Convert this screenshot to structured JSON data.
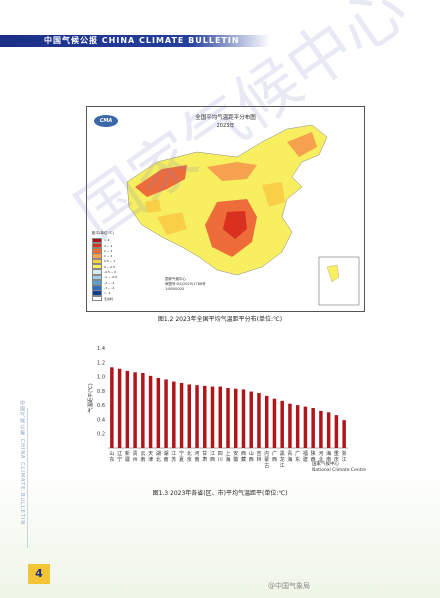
{
  "header": {
    "text": "中国气候公报  CHINA CLIMATE BULLETIN"
  },
  "sidebar": {
    "text": "中国气候公报 CHINA CLIMATE BULLETIN"
  },
  "page_number": "4",
  "map": {
    "title": "全国平均气温距平分布图",
    "year": "2023年",
    "logo_text": "CMA",
    "legend_title": "距平(单位:℃)",
    "legend": [
      {
        "label": "> 4",
        "color": "#a8141a"
      },
      {
        "label": "3 ~ 4",
        "color": "#d9301f"
      },
      {
        "label": "2 ~ 3",
        "color": "#ee6b3a"
      },
      {
        "label": "1 ~ 2",
        "color": "#f6a14e"
      },
      {
        "label": "0.5 ~ 1",
        "color": "#f9cf47"
      },
      {
        "label": "0 ~ 0.5",
        "color": "#f7ee60"
      },
      {
        "label": "-0.5 ~ 0",
        "color": "#d5ecf0"
      },
      {
        "label": "-1 ~ -0.5",
        "color": "#9fd0ea"
      },
      {
        "label": "-2 ~ -1",
        "color": "#52a2d9"
      },
      {
        "label": "-3 ~ -2",
        "color": "#2f6fc0"
      },
      {
        "label": "< -3",
        "color": "#173e8e"
      },
      {
        "label": "无资料",
        "color": "#ffffff"
      }
    ],
    "credit_line1": "国家气候中心",
    "credit_line2": "审图号:GS(2019)1786号",
    "credit_line3": "1:8000000"
  },
  "caption1": "图1.2  2023年全国平均气温距平分布(单位:℃)",
  "caption2": "图1.3  2023年各省(区、市)平均气温距平(单位:℃)",
  "chart_logo_line1": "国家气候中心",
  "chart_logo_line2": "National Climate Centre",
  "watermark": "国家气候中心",
  "weibo": "@中国气象局",
  "colors": {
    "bar": "#b0151b",
    "header": "#1b2f86",
    "accent": "#f3c436"
  },
  "chart_data": {
    "type": "bar",
    "ylabel": "气温距平(℃)",
    "ylim": [
      0,
      1.4
    ],
    "yticks": [
      0.2,
      0.4,
      0.6,
      0.8,
      1.0,
      1.2,
      1.4
    ],
    "categories": [
      "山东",
      "辽宁",
      "新疆",
      "贵州",
      "云南",
      "天津",
      "湖北",
      "湖南",
      "江苏",
      "宁夏",
      "北京",
      "河南",
      "甘肃",
      "江西",
      "四川",
      "上海",
      "安徽",
      "西藏",
      "山西",
      "吉林",
      "内蒙古",
      "广西",
      "黑龙江",
      "青海",
      "广东",
      "福建",
      "陕西",
      "河北",
      "海南",
      "重庆",
      "浙江"
    ],
    "values": [
      1.13,
      1.11,
      1.08,
      1.06,
      1.05,
      1.01,
      0.98,
      0.96,
      0.93,
      0.91,
      0.89,
      0.88,
      0.87,
      0.86,
      0.86,
      0.84,
      0.83,
      0.82,
      0.79,
      0.77,
      0.73,
      0.69,
      0.66,
      0.62,
      0.6,
      0.58,
      0.56,
      0.52,
      0.5,
      0.46,
      0.39
    ]
  }
}
